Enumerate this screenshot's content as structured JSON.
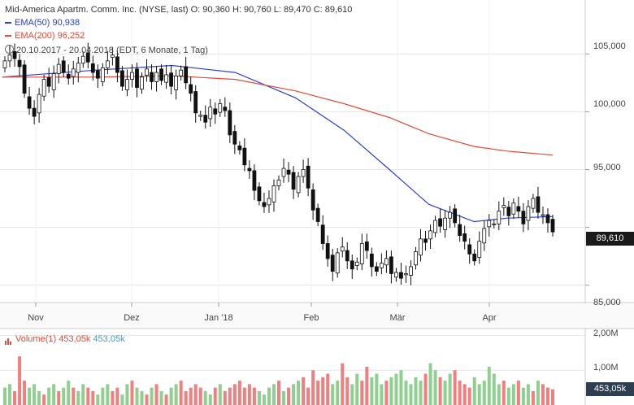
{
  "header": {
    "title_line": "Mid-America Apartm. Comm. Inc. (NYSE, last)",
    "open": "O: 90,360",
    "high": "H: 90,760",
    "low": "L: 89,470",
    "close": "C: 89,610",
    "ema50_label": "EMA(50)",
    "ema50_value": "90,938",
    "ema200_label": "EMA(200)",
    "ema200_value": "96,252",
    "period": "20.10.2017 - 20.04.2018",
    "period_detail": "(EDT, 6 Monate, 1 Tag)"
  },
  "volume_legend": {
    "label": "Volume(1)",
    "value1": "453,05k",
    "value2": "453,05k"
  },
  "price_axis": [
    "105,000",
    "100,000",
    "95,000",
    "85,000"
  ],
  "volume_axis": [
    "2,00M",
    "1,00M"
  ],
  "current_price": "89,610",
  "current_volume": "453,05k",
  "x_labels": [
    "Nov",
    "Dez",
    "Jan '18",
    "Feb",
    "Mär",
    "Apr"
  ],
  "colors": {
    "ema50": "#2b3fd4",
    "ema200": "#e34a3a",
    "candle": "#111111",
    "vol_up": "#8fcf8f",
    "vol_down": "#f08080"
  },
  "chart_data": [
    {
      "type": "candlestick",
      "title": "Mid-America Apartm. Comm. Inc. (NYSE, last)",
      "x_range": [
        "2017-10-20",
        "2018-04-20"
      ],
      "ylim": [
        83.5,
        106.5
      ],
      "y_ticks": [
        105,
        100,
        95,
        85
      ],
      "x_ticks": [
        "Nov",
        "Dez",
        "Jan '18",
        "Feb",
        "Mär",
        "Apr"
      ],
      "last": {
        "open": 90.36,
        "high": 90.76,
        "low": 89.47,
        "close": 89.61
      },
      "closes": [
        104.4,
        104.9,
        104.6,
        103.9,
        101.6,
        100.3,
        99.6,
        101.5,
        102.8,
        102.2,
        103.3,
        104.1,
        103.4,
        102.9,
        103.7,
        104.2,
        104.8,
        104.3,
        103.4,
        102.9,
        103.8,
        104.4,
        104.9,
        103.4,
        102.2,
        102.8,
        103.4,
        102.1,
        103.0,
        103.7,
        102.6,
        103.4,
        102.7,
        103.2,
        102.2,
        103.1,
        103.6,
        102.5,
        101.6,
        99.9,
        99.7,
        99.1,
        100.4,
        99.8,
        100.7,
        100.1,
        98.0,
        97.2,
        96.7,
        95.4,
        94.9,
        93.2,
        92.3,
        91.8,
        92.5,
        93.6,
        94.1,
        95.1,
        94.6,
        93.3,
        94.4,
        95.0,
        93.4,
        91.5,
        90.5,
        88.6,
        87.3,
        86.2,
        87.8,
        88.3,
        87.1,
        86.4,
        87.0,
        88.6,
        88.0,
        86.6,
        86.2,
        86.9,
        87.3,
        86.0,
        86.1,
        85.6,
        86.0,
        86.6,
        87.9,
        89.0,
        88.7,
        89.7,
        90.6,
        90.1,
        90.8,
        91.3,
        90.4,
        89.3,
        88.8,
        87.7,
        87.1,
        88.8,
        89.9,
        90.6,
        90.3,
        91.4,
        91.9,
        91.0,
        92.1,
        91.4,
        90.3,
        91.8,
        92.5,
        91.3,
        91.1,
        90.4,
        89.61
      ],
      "series": [
        {
          "name": "EMA(50)",
          "x": [
            "2017-10-20",
            "2017-11-20",
            "2017-12-15",
            "2018-01-05",
            "2018-01-25",
            "2018-02-10",
            "2018-02-25",
            "2018-03-10",
            "2018-03-25",
            "2018-04-05",
            "2018-04-20"
          ],
          "values": [
            103.0,
            103.6,
            104.0,
            103.4,
            101.2,
            98.4,
            95.0,
            92.0,
            90.5,
            90.8,
            90.938
          ]
        },
        {
          "name": "EMA(200)",
          "x": [
            "2017-10-20",
            "2017-11-20",
            "2017-12-15",
            "2018-01-05",
            "2018-01-25",
            "2018-02-10",
            "2018-02-25",
            "2018-03-10",
            "2018-03-25",
            "2018-04-05",
            "2018-04-20"
          ],
          "values": [
            103.0,
            103.0,
            103.1,
            102.8,
            101.8,
            100.7,
            99.5,
            98.1,
            97.0,
            96.6,
            96.252
          ]
        }
      ]
    },
    {
      "type": "bar",
      "title": "Volume(1)",
      "ylim": [
        0,
        2.2
      ],
      "y_ticks": [
        2.0,
        1.0
      ],
      "values": [
        0.5,
        0.6,
        0.4,
        1.4,
        0.7,
        0.5,
        0.6,
        0.4,
        0.3,
        0.5,
        0.6,
        0.4,
        0.5,
        0.7,
        0.5,
        0.4,
        0.6,
        0.5,
        0.4,
        0.3,
        0.5,
        0.6,
        0.4,
        0.5,
        0.3,
        0.6,
        0.7,
        0.5,
        0.4,
        0.3,
        0.5,
        0.6,
        0.4,
        0.3,
        0.5,
        0.6,
        0.7,
        0.4,
        0.5,
        0.6,
        0.5,
        0.4,
        0.3,
        0.5,
        0.6,
        0.4,
        0.5,
        0.6,
        0.7,
        0.5,
        0.6,
        0.5,
        0.4,
        0.3,
        0.5,
        0.6,
        0.7,
        0.4,
        0.5,
        0.6,
        0.7,
        0.8,
        0.5,
        1.0,
        0.7,
        0.8,
        0.9,
        0.6,
        0.7,
        1.2,
        0.8,
        0.6,
        0.9,
        0.7,
        1.1,
        0.8,
        0.9,
        0.6,
        0.7,
        0.8,
        0.9,
        1.0,
        0.7,
        0.6,
        0.8,
        0.7,
        0.9,
        1.2,
        1.0,
        0.8,
        0.7,
        0.9,
        1.0,
        0.7,
        0.6,
        0.5,
        0.8,
        0.6,
        0.7,
        1.1,
        0.9,
        0.6,
        0.7,
        0.5,
        0.6,
        0.7,
        0.5,
        0.6,
        0.4,
        0.7,
        0.6,
        0.5,
        0.453
      ],
      "up": [
        1,
        1,
        0,
        0,
        0,
        1,
        1,
        1,
        0,
        1,
        1,
        0,
        1,
        1,
        0,
        1,
        1,
        0,
        0,
        1,
        1,
        1,
        0,
        0,
        1,
        1,
        0,
        1,
        1,
        0,
        1,
        0,
        1,
        0,
        1,
        1,
        0,
        0,
        0,
        0,
        0,
        1,
        1,
        0,
        1,
        0,
        0,
        0,
        0,
        0,
        0,
        0,
        1,
        1,
        1,
        1,
        0,
        1,
        0,
        1,
        1,
        0,
        0,
        0,
        0,
        0,
        0,
        1,
        1,
        0,
        0,
        1,
        1,
        0,
        0,
        1,
        1,
        1,
        0,
        1,
        1,
        1,
        1,
        1,
        1,
        1,
        0,
        1,
        1,
        0,
        1,
        1,
        0,
        0,
        0,
        0,
        1,
        1,
        1,
        1,
        1,
        1,
        0,
        1,
        1,
        0,
        1,
        1,
        0,
        1,
        0,
        0,
        0
      ]
    }
  ]
}
